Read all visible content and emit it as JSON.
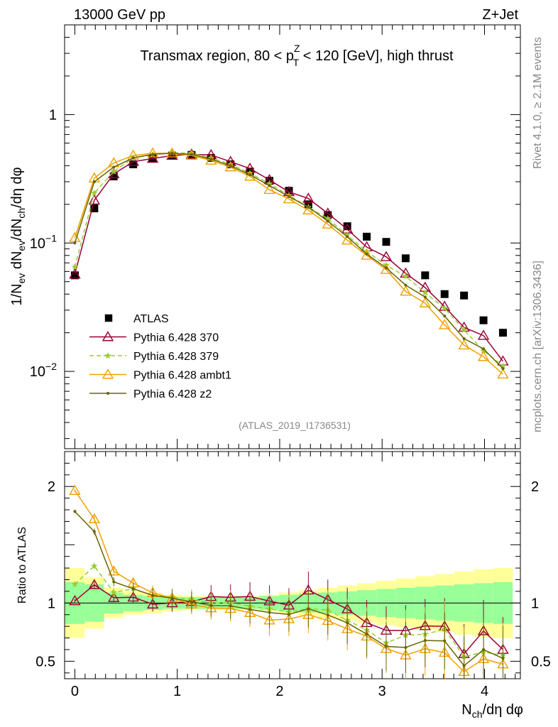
{
  "chart_data": {
    "type": "line",
    "header_left": "13000 GeV pp",
    "header_right": "Z+Jet",
    "title": "Transmax region, 80 < p_T^Z < 120 [GeV], high thrust",
    "title_parts": {
      "pre": "Transmax region, 80 < p",
      "sup": "Z",
      "sub": "T",
      "post": " < 120 [GeV], high thrust"
    },
    "ylabel": "1/N_ev dN_ev/dN_ch/dη dφ",
    "ylabel_parts": {
      "a": "1/N",
      "a_sub": "ev",
      "b": " dN",
      "b_sub": "ev",
      "c": "/dN",
      "c_sub": "ch",
      "d": "/dη dφ"
    },
    "xlabel": "N_ch/dη dφ",
    "xlabel_parts": {
      "a": "N",
      "a_sub": "ch",
      "b": "/dη dφ"
    },
    "ratio_ylabel": "Ratio to ATLAS",
    "side_label_top": "Rivet 4.1.0, ≥ 2.1M events",
    "side_label_bottom": "mcplots.cern.ch [arXiv:1306.3436]",
    "watermark": "(ATLAS_2019_I1736531)",
    "xlim": [
      -0.1,
      4.35
    ],
    "ylim": [
      0.0025,
      5
    ],
    "yscale": "log",
    "ratio_ylim": [
      0.35,
      2.3
    ],
    "x_ticks": [
      "0",
      "1",
      "2",
      "3",
      "4"
    ],
    "y_ticks": [
      {
        "value": 1,
        "base": "1",
        "exp": ""
      },
      {
        "value": 0.1,
        "base": "10",
        "exp": "−1"
      },
      {
        "value": 0.01,
        "base": "10",
        "exp": "−2"
      }
    ],
    "ratio_ticks": [
      "0.5",
      "1",
      "2"
    ],
    "x": [
      0.0,
      0.19,
      0.38,
      0.57,
      0.76,
      0.95,
      1.14,
      1.33,
      1.52,
      1.71,
      1.9,
      2.09,
      2.28,
      2.47,
      2.66,
      2.85,
      3.04,
      3.23,
      3.42,
      3.61,
      3.8,
      3.99,
      4.18
    ],
    "band_inner": [
      0.18,
      0.16,
      0.09,
      0.07,
      0.06,
      0.05,
      0.05,
      0.05,
      0.05,
      0.05,
      0.06,
      0.07,
      0.08,
      0.09,
      0.1,
      0.11,
      0.12,
      0.13,
      0.14,
      0.15,
      0.16,
      0.17,
      0.18
    ],
    "band_outer": [
      0.3,
      0.22,
      0.13,
      0.1,
      0.09,
      0.07,
      0.06,
      0.06,
      0.06,
      0.06,
      0.07,
      0.09,
      0.11,
      0.13,
      0.15,
      0.17,
      0.19,
      0.21,
      0.23,
      0.25,
      0.27,
      0.29,
      0.3
    ],
    "legend": [
      {
        "name": "ATLAS"
      },
      {
        "name": "Pythia 6.428 370"
      },
      {
        "name": "Pythia 6.428 379"
      },
      {
        "name": "Pythia 6.428 ambt1"
      },
      {
        "name": "Pythia 6.428 z2"
      }
    ],
    "series": [
      {
        "name": "ATLAS",
        "color": "#000000",
        "marker": "square",
        "dash": "",
        "values": [
          0.056,
          0.186,
          0.33,
          0.41,
          0.46,
          0.48,
          0.485,
          0.46,
          0.41,
          0.36,
          0.305,
          0.255,
          0.2,
          0.165,
          0.135,
          0.112,
          0.102,
          0.076,
          0.056,
          0.04,
          0.039,
          0.025,
          0.02
        ]
      },
      {
        "name": "Pythia 6.428 370",
        "color": "#990033",
        "marker": "triangle-open",
        "dash": "",
        "values": [
          0.057,
          0.215,
          0.345,
          0.43,
          0.455,
          0.48,
          0.49,
          0.485,
          0.43,
          0.38,
          0.31,
          0.25,
          0.222,
          0.17,
          0.128,
          0.093,
          0.078,
          0.058,
          0.045,
          0.032,
          0.022,
          0.019,
          0.012
        ]
      },
      {
        "name": "Pythia 6.428 379",
        "color": "#99cc33",
        "marker": "star",
        "dash": "6,4",
        "values": [
          0.065,
          0.245,
          0.36,
          0.46,
          0.49,
          0.505,
          0.5,
          0.46,
          0.41,
          0.35,
          0.29,
          0.235,
          0.19,
          0.155,
          0.115,
          0.086,
          0.067,
          0.055,
          0.041,
          0.031,
          0.021,
          0.0145,
          0.011
        ]
      },
      {
        "name": "Pythia 6.428 ambt1",
        "color": "#f0a000",
        "marker": "triangle-open",
        "dash": "",
        "values": [
          0.11,
          0.32,
          0.42,
          0.48,
          0.5,
          0.5,
          0.48,
          0.44,
          0.39,
          0.33,
          0.26,
          0.22,
          0.18,
          0.14,
          0.105,
          0.08,
          0.062,
          0.042,
          0.034,
          0.023,
          0.016,
          0.013,
          0.0095
        ]
      },
      {
        "name": "Pythia 6.428 z2",
        "color": "#666600",
        "marker": "dot",
        "dash": "",
        "values": [
          0.1,
          0.3,
          0.39,
          0.46,
          0.49,
          0.5,
          0.49,
          0.45,
          0.4,
          0.34,
          0.28,
          0.23,
          0.19,
          0.148,
          0.112,
          0.082,
          0.064,
          0.047,
          0.038,
          0.027,
          0.018,
          0.015,
          0.0105
        ]
      }
    ]
  }
}
